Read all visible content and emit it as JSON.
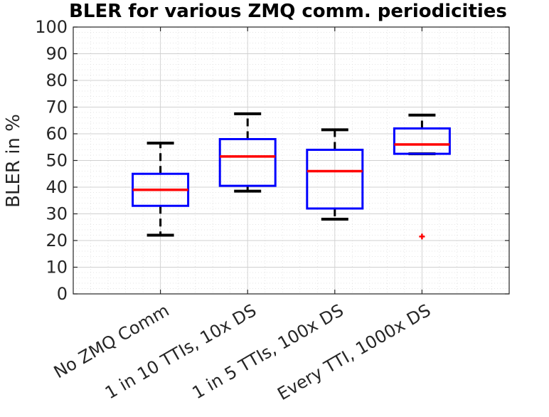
{
  "chart_data": {
    "type": "boxplot",
    "title": "BLER for various ZMQ comm. periodicities",
    "xlabel": "",
    "ylabel": "BLER in %",
    "ylim": [
      0,
      100
    ],
    "yticks": [
      0,
      10,
      20,
      30,
      40,
      50,
      60,
      70,
      80,
      90,
      100
    ],
    "grid": true,
    "minor_grid": true,
    "categories": [
      "No ZMQ Comm",
      "1 in 10 TTIs, 10x DS",
      "1 in 5 TTIs, 100x DS",
      "Every TTI, 1000x DS"
    ],
    "boxes": [
      {
        "whisker_low": 22,
        "q1": 33,
        "median": 39,
        "q3": 45,
        "whisker_high": 56.5,
        "outliers": []
      },
      {
        "whisker_low": 38.5,
        "q1": 40.5,
        "median": 51.5,
        "q3": 58,
        "whisker_high": 67.5,
        "outliers": []
      },
      {
        "whisker_low": 28,
        "q1": 32,
        "median": 46,
        "q3": 54,
        "whisker_high": 61.5,
        "outliers": []
      },
      {
        "whisker_low": 52.5,
        "q1": 52.5,
        "median": 56,
        "q3": 62,
        "whisker_high": 67,
        "outliers": [
          21.5
        ]
      }
    ],
    "colors": {
      "box": "#0000ff",
      "median": "#ff0000",
      "whisker": "#000000",
      "outlier": "#ff0000",
      "axis": "#262626",
      "grid": "#dcdcdc"
    }
  }
}
